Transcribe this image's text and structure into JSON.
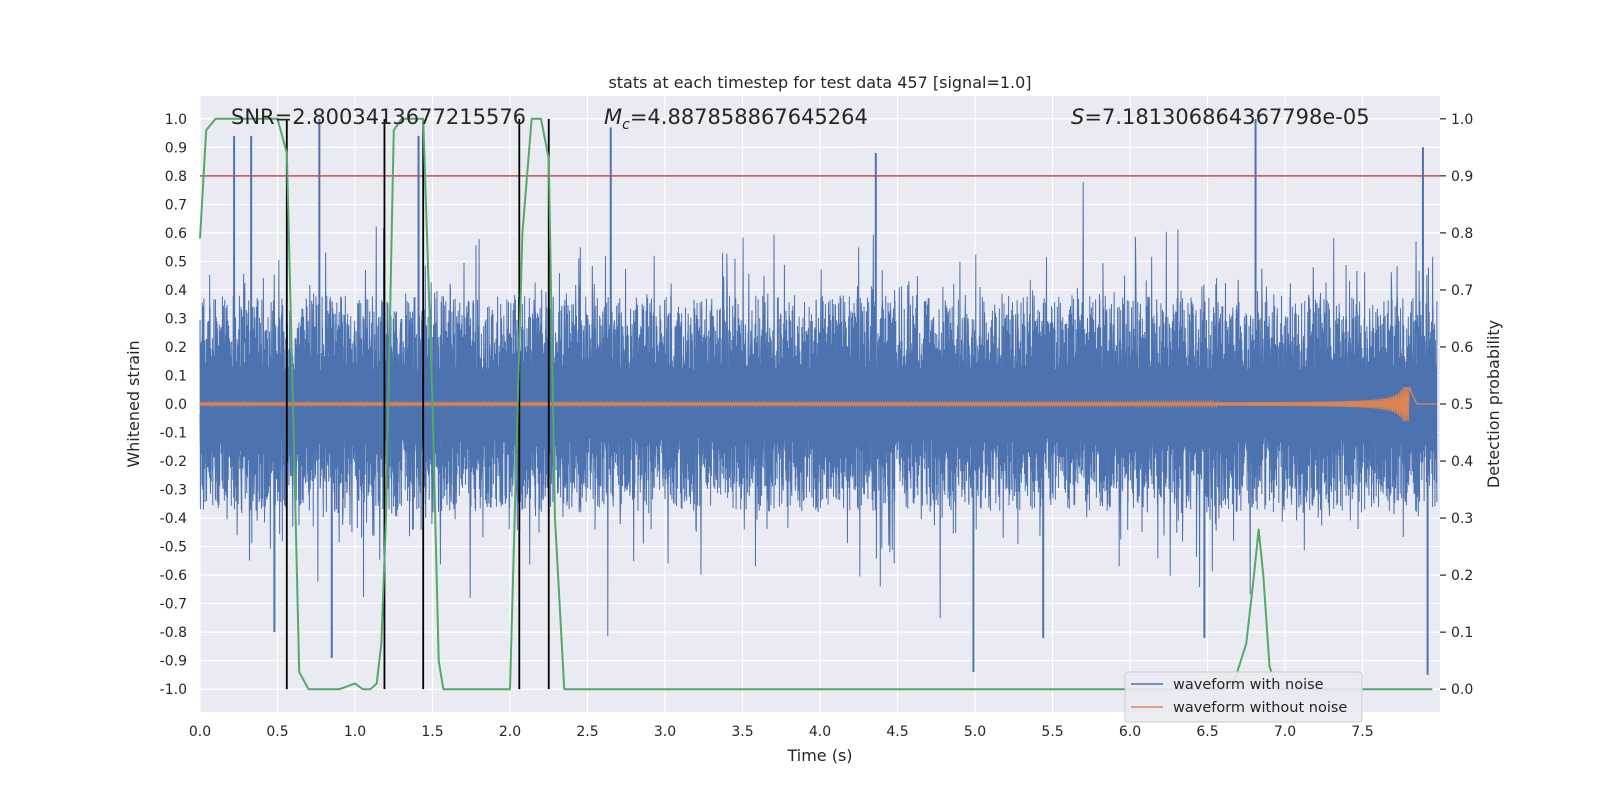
{
  "chart_data": {
    "type": "line",
    "title": "stats at each timestep for test data 457 [signal=1.0]",
    "xlabel": "Time (s)",
    "ylabel": "Whitened strain",
    "y2label": "Detection probability",
    "xlim": [
      0,
      8.0
    ],
    "ylim": [
      -1.08,
      1.08
    ],
    "y2lim": [
      -0.04,
      1.04
    ],
    "xticks": [
      "0.0",
      "0.5",
      "1.0",
      "1.5",
      "2.0",
      "2.5",
      "3.0",
      "3.5",
      "4.0",
      "4.5",
      "5.0",
      "5.5",
      "6.0",
      "6.5",
      "7.0",
      "7.5"
    ],
    "yticks": [
      "1.0",
      "0.9",
      "0.8",
      "0.7",
      "0.6",
      "0.5",
      "0.4",
      "0.3",
      "0.2",
      "0.1",
      "0.0",
      "-0.1",
      "-0.2",
      "-0.3",
      "-0.4",
      "-0.5",
      "-0.6",
      "-0.7",
      "-0.8",
      "-0.9",
      "-1.0"
    ],
    "y2ticks": [
      "1.0",
      "0.9",
      "0.8",
      "0.7",
      "0.6",
      "0.5",
      "0.4",
      "0.3",
      "0.2",
      "0.1",
      "0.0"
    ],
    "annotations": {
      "snr": "SNR=2.8003413677215576",
      "mc_symbol": "M",
      "mc_sub": "c",
      "mc_value": "=4.887858867645264",
      "s_symbol": "S",
      "s_value": "=7.181306864367798e-05"
    },
    "threshold": 0.9,
    "event_lines_s": [
      0.56,
      1.19,
      1.44,
      2.06,
      2.25
    ],
    "noise_peaks": [
      {
        "x": 0.22,
        "y": 0.94
      },
      {
        "x": 0.33,
        "y": 0.94
      },
      {
        "x": 0.77,
        "y": 1.0
      },
      {
        "x": 1.41,
        "y": 0.94
      },
      {
        "x": 2.65,
        "y": 0.97
      },
      {
        "x": 4.36,
        "y": 0.88
      },
      {
        "x": 6.81,
        "y": 1.0
      },
      {
        "x": 7.89,
        "y": 0.9
      }
    ],
    "noise_troughs": [
      {
        "x": 0.48,
        "y": -0.8
      },
      {
        "x": 0.85,
        "y": -0.89
      },
      {
        "x": 4.99,
        "y": -0.94
      },
      {
        "x": 5.44,
        "y": -0.82
      },
      {
        "x": 6.48,
        "y": -0.82
      },
      {
        "x": 7.92,
        "y": -0.95
      }
    ],
    "series": [
      {
        "name": "waveform with noise",
        "color": "#4c72b0"
      },
      {
        "name": "waveform without noise",
        "color": "#dd8452",
        "chirp_end_s": 7.8,
        "max_amplitude": 0.06
      },
      {
        "name": "detection probability",
        "color": "#55a868",
        "x": [
          0.0,
          0.04,
          0.1,
          0.2,
          0.35,
          0.5,
          0.56,
          0.6,
          0.64,
          0.7,
          0.85,
          0.9,
          1.0,
          1.05,
          1.1,
          1.14,
          1.17,
          1.2,
          1.25,
          1.3,
          1.35,
          1.4,
          1.44,
          1.5,
          1.54,
          1.57,
          1.7,
          1.9,
          2.0,
          2.03,
          2.08,
          2.14,
          2.2,
          2.25,
          2.29,
          2.35,
          3.0,
          4.0,
          5.0,
          6.0,
          6.6,
          6.68,
          6.75,
          6.8,
          6.83,
          6.86,
          6.9,
          6.95,
          7.2,
          7.95
        ],
        "y": [
          0.79,
          0.98,
          1.0,
          1.0,
          1.0,
          1.0,
          0.94,
          0.5,
          0.03,
          0.0,
          0.0,
          0.0,
          0.01,
          0.0,
          0.0,
          0.01,
          0.08,
          0.3,
          0.98,
          1.0,
          1.0,
          1.0,
          1.0,
          0.5,
          0.05,
          0.0,
          0.0,
          0.0,
          0.0,
          0.3,
          0.8,
          1.0,
          1.0,
          0.93,
          0.3,
          0.0,
          0.0,
          0.0,
          0.0,
          0.0,
          0.0,
          0.02,
          0.08,
          0.2,
          0.28,
          0.2,
          0.04,
          0.0,
          0.0,
          0.0
        ]
      }
    ],
    "legend_position": "lower-right",
    "grid": true
  }
}
